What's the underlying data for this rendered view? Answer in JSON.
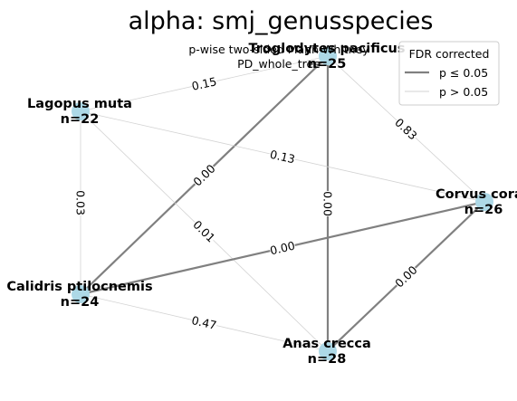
{
  "chart_data": {
    "type": "network",
    "title": "alpha: smj_genusspecies",
    "subtitle_lines": [
      "p-wise two-sided Mann-Whitney",
      "PD_whole_tree"
    ],
    "legend": {
      "title": "FDR corrected",
      "placement": "top-right",
      "items": [
        {
          "label": "p ≤ 0.05",
          "style": "significant"
        },
        {
          "label": "p > 0.05",
          "style": "not-significant"
        }
      ]
    },
    "styles": {
      "node_color": "#add8e6",
      "significant_color": "#808080",
      "nonsignificant_color": "#d3d3d3"
    },
    "nodes": [
      {
        "id": "troglodytes",
        "name": "Troglodytes pacificus",
        "n": "n=25"
      },
      {
        "id": "lagopus",
        "name": "Lagopus muta",
        "n": "n=22"
      },
      {
        "id": "corvus",
        "name": "Corvus corax",
        "n": "n=26"
      },
      {
        "id": "ptilocnemis",
        "name": "Calidris ptilocnemis",
        "n": "n=24"
      },
      {
        "id": "anas",
        "name": "Anas crecca",
        "n": "n=28"
      }
    ],
    "edges": [
      {
        "from": "troglodytes",
        "to": "lagopus",
        "label": "0.15",
        "significant": false
      },
      {
        "from": "troglodytes",
        "to": "corvus",
        "label": "0.83",
        "significant": false
      },
      {
        "from": "troglodytes",
        "to": "ptilocnemis",
        "label": "0.00",
        "significant": true
      },
      {
        "from": "troglodytes",
        "to": "anas",
        "label": "0.00",
        "significant": true
      },
      {
        "from": "lagopus",
        "to": "corvus",
        "label": "0.13",
        "significant": false
      },
      {
        "from": "lagopus",
        "to": "ptilocnemis",
        "label": "0.03",
        "significant": false
      },
      {
        "from": "lagopus",
        "to": "anas",
        "label": "0.01",
        "significant": false
      },
      {
        "from": "corvus",
        "to": "ptilocnemis",
        "label": "0.00",
        "significant": true
      },
      {
        "from": "corvus",
        "to": "anas",
        "label": "0.00",
        "significant": true
      },
      {
        "from": "ptilocnemis",
        "to": "anas",
        "label": "0.47",
        "significant": false
      }
    ]
  }
}
